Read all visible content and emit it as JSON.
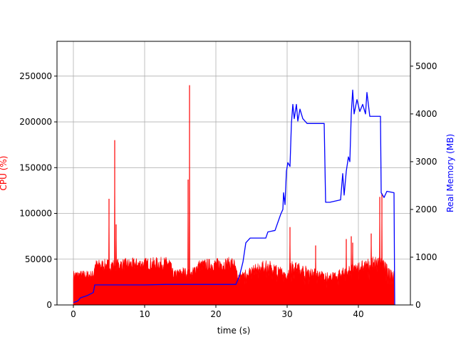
{
  "chart_data": {
    "type": "line",
    "title": "",
    "xlabel": "time (s)",
    "ylabel_left": "CPU (%)",
    "ylabel_right": "Real Memory (MB)",
    "xlim": [
      -2.3,
      47.3
    ],
    "ylim_left": [
      0,
      288000
    ],
    "ylim_right": [
      0,
      5520
    ],
    "grid": true,
    "x_ticks": [
      0,
      10,
      20,
      30,
      40
    ],
    "y_left_ticks": [
      0,
      50000,
      100000,
      150000,
      200000,
      250000
    ],
    "y_right_ticks": [
      0,
      1000,
      2000,
      3000,
      4000,
      5000
    ],
    "colors": {
      "cpu": "#ff0000",
      "memory": "#0000ff"
    },
    "series": [
      {
        "axis": "left",
        "color": "#ff0000",
        "fill": true,
        "baseline": [
          [
            0,
            38000
          ],
          [
            2.8,
            38000
          ],
          [
            3,
            50000
          ],
          [
            13.5,
            53000
          ],
          [
            14,
            38000
          ],
          [
            15.5,
            42000
          ],
          [
            16.5,
            38000
          ],
          [
            17.5,
            50000
          ],
          [
            22.5,
            53000
          ],
          [
            23,
            36000
          ],
          [
            27,
            50000
          ],
          [
            29,
            44000
          ],
          [
            29.8,
            35000
          ],
          [
            30.5,
            50000
          ],
          [
            33,
            42000
          ],
          [
            36,
            35000
          ],
          [
            40,
            48000
          ],
          [
            43,
            55000
          ],
          [
            44,
            45000
          ],
          [
            45,
            40000
          ]
        ],
        "spikes": [
          [
            5.0,
            116000
          ],
          [
            5.8,
            180000
          ],
          [
            6.0,
            88000
          ],
          [
            16.1,
            137000
          ],
          [
            16.3,
            240000
          ],
          [
            30.4,
            85000
          ],
          [
            34.0,
            65000
          ],
          [
            38.3,
            72000
          ],
          [
            39.0,
            75000
          ],
          [
            39.2,
            68000
          ],
          [
            41.8,
            78000
          ],
          [
            43.0,
            118000
          ],
          [
            43.3,
            122000
          ]
        ]
      },
      {
        "axis": "right",
        "color": "#0000ff",
        "points": [
          [
            0,
            50
          ],
          [
            0.6,
            80
          ],
          [
            1.0,
            150
          ],
          [
            2.0,
            200
          ],
          [
            2.8,
            260
          ],
          [
            3.0,
            420
          ],
          [
            10,
            420
          ],
          [
            13,
            430
          ],
          [
            22.8,
            430
          ],
          [
            23.3,
            600
          ],
          [
            23.8,
            900
          ],
          [
            24.2,
            1300
          ],
          [
            24.8,
            1400
          ],
          [
            27,
            1400
          ],
          [
            27.3,
            1530
          ],
          [
            28.3,
            1560
          ],
          [
            29.1,
            1900
          ],
          [
            29.4,
            2000
          ],
          [
            29.5,
            2350
          ],
          [
            29.7,
            2100
          ],
          [
            29.9,
            2800
          ],
          [
            30.1,
            2980
          ],
          [
            30.4,
            2900
          ],
          [
            30.6,
            3800
          ],
          [
            30.8,
            4200
          ],
          [
            31.0,
            3900
          ],
          [
            31.3,
            4200
          ],
          [
            31.5,
            3850
          ],
          [
            31.8,
            4100
          ],
          [
            32.2,
            3900
          ],
          [
            32.8,
            3800
          ],
          [
            35.2,
            3800
          ],
          [
            35.4,
            2150
          ],
          [
            36,
            2150
          ],
          [
            37.5,
            2200
          ],
          [
            37.8,
            2750
          ],
          [
            38.0,
            2300
          ],
          [
            38.3,
            2800
          ],
          [
            38.6,
            3100
          ],
          [
            38.8,
            3000
          ],
          [
            39.0,
            4000
          ],
          [
            39.2,
            4500
          ],
          [
            39.4,
            4000
          ],
          [
            39.8,
            4300
          ],
          [
            40.2,
            4050
          ],
          [
            40.6,
            4200
          ],
          [
            41.0,
            4000
          ],
          [
            41.2,
            4450
          ],
          [
            41.6,
            3950
          ],
          [
            43.1,
            3950
          ],
          [
            43.2,
            2350
          ],
          [
            43.6,
            2250
          ],
          [
            44,
            2380
          ],
          [
            45,
            2350
          ],
          [
            45.1,
            0
          ]
        ]
      }
    ]
  }
}
